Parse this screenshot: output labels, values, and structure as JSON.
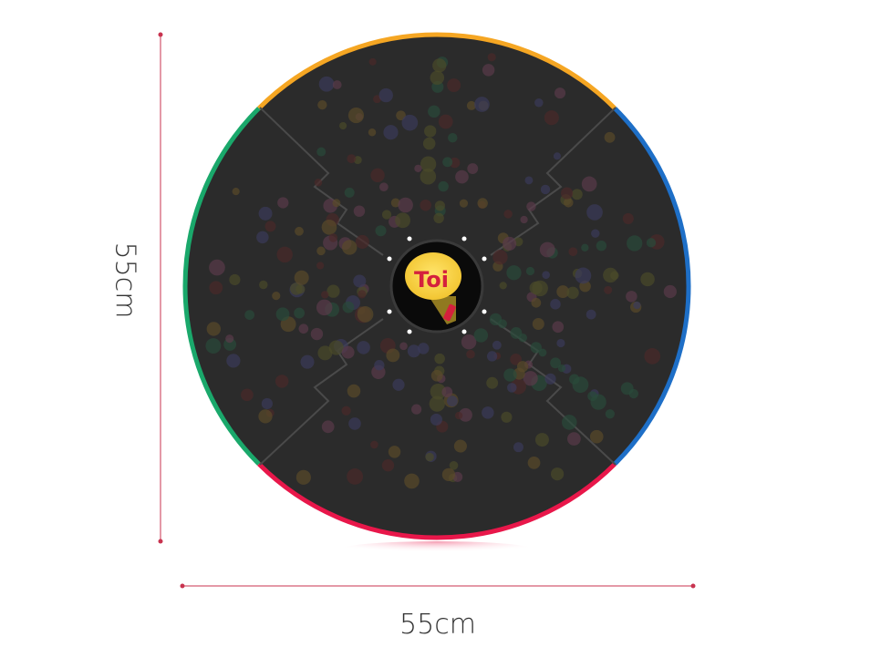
{
  "product": {
    "logo_text": "Toi",
    "height_label": "55cm",
    "width_label": "55cm",
    "edge_colors": {
      "top": "#f5a623",
      "right": "#1e6fc7",
      "bottom": "#e8174a",
      "left": "#1aa86b"
    },
    "mat_color": "#2b2b2b",
    "dimension_line_color": "#c8334f"
  }
}
